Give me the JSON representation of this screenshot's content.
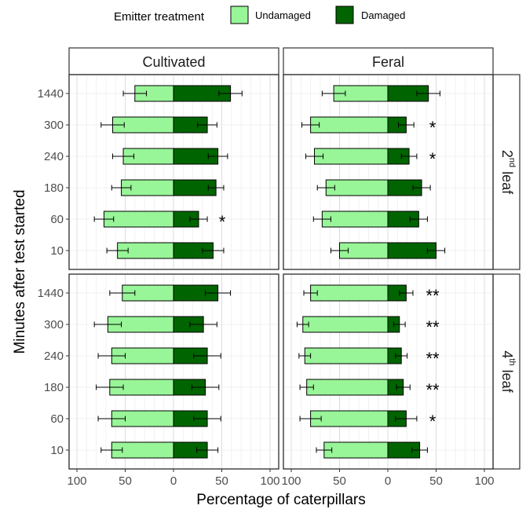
{
  "chart_data": {
    "type": "bar",
    "orientation": "horizontal-diverging",
    "legend": {
      "title": "Emitter treatment",
      "entries": [
        {
          "label": "Undamaged",
          "color": "#98f598"
        },
        {
          "label": "Damaged",
          "color": "#006400"
        }
      ],
      "placement": "top"
    },
    "xlabel": "Percentage of caterpillars",
    "ylabel": "Minutes after test started",
    "xlim": [
      -100,
      100
    ],
    "x_ticks": [
      "100",
      "50",
      "0",
      "50",
      "100"
    ],
    "y_categories": [
      "1440",
      "300",
      "240",
      "180",
      "60",
      "10"
    ],
    "col_labels": [
      "Cultivated",
      "Feral"
    ],
    "row_labels": [
      {
        "main": "2",
        "sup": "nd",
        "rest": " leaf"
      },
      {
        "main": "4",
        "sup": "th",
        "rest": " leaf"
      }
    ],
    "grid": true,
    "panels": [
      {
        "col": 0,
        "row": 0,
        "bars": [
          {
            "time": "1440",
            "undamaged": 40,
            "undamaged_err": 12,
            "damaged": 59,
            "damaged_err": 12,
            "sig": ""
          },
          {
            "time": "300",
            "undamaged": 63,
            "undamaged_err": 12,
            "damaged": 35,
            "damaged_err": 10,
            "sig": ""
          },
          {
            "time": "240",
            "undamaged": 52,
            "undamaged_err": 11,
            "damaged": 46,
            "damaged_err": 10,
            "sig": ""
          },
          {
            "time": "180",
            "undamaged": 54,
            "undamaged_err": 10,
            "damaged": 44,
            "damaged_err": 8,
            "sig": ""
          },
          {
            "time": "60",
            "undamaged": 72,
            "undamaged_err": 10,
            "damaged": 26,
            "damaged_err": 9,
            "sig": "*"
          },
          {
            "time": "10",
            "undamaged": 58,
            "undamaged_err": 11,
            "damaged": 41,
            "damaged_err": 11,
            "sig": ""
          }
        ]
      },
      {
        "col": 1,
        "row": 0,
        "bars": [
          {
            "time": "1440",
            "undamaged": 56,
            "undamaged_err": 12,
            "damaged": 42,
            "damaged_err": 12,
            "sig": ""
          },
          {
            "time": "300",
            "undamaged": 80,
            "undamaged_err": 9,
            "damaged": 19,
            "damaged_err": 8,
            "sig": "*"
          },
          {
            "time": "240",
            "undamaged": 76,
            "undamaged_err": 9,
            "damaged": 22,
            "damaged_err": 8,
            "sig": "*"
          },
          {
            "time": "180",
            "undamaged": 64,
            "undamaged_err": 9,
            "damaged": 35,
            "damaged_err": 9,
            "sig": ""
          },
          {
            "time": "60",
            "undamaged": 68,
            "undamaged_err": 9,
            "damaged": 32,
            "damaged_err": 9,
            "sig": ""
          },
          {
            "time": "10",
            "undamaged": 50,
            "undamaged_err": 9,
            "damaged": 50,
            "damaged_err": 9,
            "sig": ""
          }
        ]
      },
      {
        "col": 0,
        "row": 1,
        "bars": [
          {
            "time": "1440",
            "undamaged": 53,
            "undamaged_err": 13,
            "damaged": 46,
            "damaged_err": 13,
            "sig": ""
          },
          {
            "time": "300",
            "undamaged": 68,
            "undamaged_err": 14,
            "damaged": 31,
            "damaged_err": 14,
            "sig": ""
          },
          {
            "time": "240",
            "undamaged": 64,
            "undamaged_err": 14,
            "damaged": 35,
            "damaged_err": 14,
            "sig": ""
          },
          {
            "time": "180",
            "undamaged": 66,
            "undamaged_err": 14,
            "damaged": 33,
            "damaged_err": 14,
            "sig": ""
          },
          {
            "time": "60",
            "undamaged": 64,
            "undamaged_err": 14,
            "damaged": 35,
            "damaged_err": 14,
            "sig": ""
          },
          {
            "time": "10",
            "undamaged": 64,
            "undamaged_err": 11,
            "damaged": 35,
            "damaged_err": 11,
            "sig": ""
          }
        ]
      },
      {
        "col": 1,
        "row": 1,
        "bars": [
          {
            "time": "1440",
            "undamaged": 80,
            "undamaged_err": 7,
            "damaged": 19,
            "damaged_err": 7,
            "sig": "**"
          },
          {
            "time": "300",
            "undamaged": 88,
            "undamaged_err": 6,
            "damaged": 12,
            "damaged_err": 6,
            "sig": "**"
          },
          {
            "time": "240",
            "undamaged": 86,
            "undamaged_err": 6,
            "damaged": 14,
            "damaged_err": 6,
            "sig": "**"
          },
          {
            "time": "180",
            "undamaged": 84,
            "undamaged_err": 7,
            "damaged": 16,
            "damaged_err": 7,
            "sig": "**"
          },
          {
            "time": "60",
            "undamaged": 80,
            "undamaged_err": 11,
            "damaged": 19,
            "damaged_err": 11,
            "sig": "*"
          },
          {
            "time": "10",
            "undamaged": 66,
            "undamaged_err": 8,
            "damaged": 33,
            "damaged_err": 8,
            "sig": ""
          }
        ]
      }
    ]
  }
}
